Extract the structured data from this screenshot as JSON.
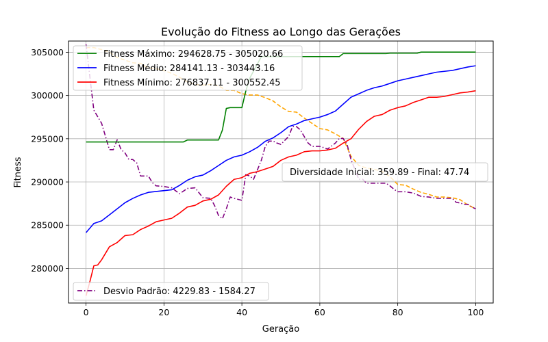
{
  "chart_data": {
    "type": "line",
    "title": "Evolução do Fitness ao Longo das Gerações",
    "xlabel": "Geração",
    "ylabel": "Fitness",
    "xlim": [
      -4.5,
      104.5
    ],
    "ylim": [
      276000,
      306300
    ],
    "xticks": [
      0,
      20,
      40,
      60,
      80,
      100
    ],
    "yticks": [
      280000,
      285000,
      290000,
      295000,
      300000,
      305000
    ],
    "grid": true,
    "legend_primary": "top-left",
    "legend_secondary": "bottom-left",
    "secondary_axis": {
      "hidden": true,
      "ylim": [
        -230,
        3750
      ],
      "note": "Diversidade (orange dashed) is plotted on a hidden secondary axis"
    },
    "annotation": "Diversidade Inicial: 359.89 - Final: 47.74",
    "series": [
      {
        "name": "Fitness Máximo: 294628.75 - 305020.66",
        "color": "#008000",
        "style": "solid",
        "axis": "primary",
        "points": [
          [
            0,
            294628.75
          ],
          [
            25,
            294628.75
          ],
          [
            26,
            294850
          ],
          [
            34,
            294850
          ],
          [
            35,
            296000
          ],
          [
            36,
            298500
          ],
          [
            37,
            298600
          ],
          [
            40,
            298600
          ],
          [
            41,
            300500
          ],
          [
            42,
            302000
          ],
          [
            45,
            304500
          ],
          [
            65,
            304500
          ],
          [
            66,
            304850
          ],
          [
            77,
            304850
          ],
          [
            78,
            304900
          ],
          [
            85,
            304900
          ],
          [
            86,
            305020.66
          ],
          [
            100,
            305020.66
          ]
        ]
      },
      {
        "name": "Fitness Médio: 284141.13 - 303443.16",
        "color": "#0000ff",
        "style": "solid",
        "axis": "primary",
        "points": [
          [
            0,
            284141.13
          ],
          [
            2,
            285200
          ],
          [
            4,
            285500
          ],
          [
            6,
            286200
          ],
          [
            8,
            286900
          ],
          [
            10,
            287600
          ],
          [
            12,
            288100
          ],
          [
            14,
            288500
          ],
          [
            16,
            288800
          ],
          [
            18,
            288900
          ],
          [
            20,
            289000
          ],
          [
            22,
            289100
          ],
          [
            24,
            289600
          ],
          [
            26,
            290200
          ],
          [
            28,
            290600
          ],
          [
            30,
            290800
          ],
          [
            32,
            291300
          ],
          [
            34,
            291900
          ],
          [
            36,
            292500
          ],
          [
            38,
            292900
          ],
          [
            40,
            293100
          ],
          [
            42,
            293500
          ],
          [
            44,
            294000
          ],
          [
            46,
            294700
          ],
          [
            48,
            295100
          ],
          [
            50,
            295700
          ],
          [
            52,
            296400
          ],
          [
            54,
            296700
          ],
          [
            56,
            297100
          ],
          [
            58,
            297300
          ],
          [
            60,
            297500
          ],
          [
            62,
            297800
          ],
          [
            64,
            298200
          ],
          [
            66,
            299000
          ],
          [
            68,
            299800
          ],
          [
            70,
            300200
          ],
          [
            72,
            300600
          ],
          [
            74,
            300900
          ],
          [
            76,
            301100
          ],
          [
            78,
            301400
          ],
          [
            80,
            301700
          ],
          [
            82,
            301900
          ],
          [
            84,
            302100
          ],
          [
            86,
            302300
          ],
          [
            88,
            302500
          ],
          [
            90,
            302700
          ],
          [
            92,
            302800
          ],
          [
            94,
            302900
          ],
          [
            96,
            303100
          ],
          [
            98,
            303300
          ],
          [
            100,
            303443.16
          ]
        ]
      },
      {
        "name": "Fitness Mínimo: 276837.11 - 300552.45",
        "color": "#ff0000",
        "style": "solid",
        "axis": "primary",
        "points": [
          [
            0,
            276837.11
          ],
          [
            1,
            278500
          ],
          [
            2,
            280300
          ],
          [
            3,
            280400
          ],
          [
            4,
            281000
          ],
          [
            6,
            282500
          ],
          [
            8,
            283000
          ],
          [
            10,
            283800
          ],
          [
            12,
            283900
          ],
          [
            14,
            284500
          ],
          [
            16,
            284900
          ],
          [
            18,
            285400
          ],
          [
            20,
            285600
          ],
          [
            22,
            285800
          ],
          [
            24,
            286400
          ],
          [
            26,
            287100
          ],
          [
            28,
            287300
          ],
          [
            30,
            287800
          ],
          [
            32,
            288000
          ],
          [
            34,
            288500
          ],
          [
            36,
            289500
          ],
          [
            38,
            290300
          ],
          [
            40,
            290500
          ],
          [
            42,
            291000
          ],
          [
            44,
            291200
          ],
          [
            46,
            291500
          ],
          [
            48,
            291800
          ],
          [
            50,
            292500
          ],
          [
            52,
            292900
          ],
          [
            54,
            293100
          ],
          [
            56,
            293500
          ],
          [
            58,
            293600
          ],
          [
            60,
            293600
          ],
          [
            62,
            293700
          ],
          [
            64,
            293900
          ],
          [
            66,
            294500
          ],
          [
            68,
            295000
          ],
          [
            70,
            296100
          ],
          [
            72,
            297000
          ],
          [
            74,
            297600
          ],
          [
            76,
            297800
          ],
          [
            78,
            298300
          ],
          [
            80,
            298600
          ],
          [
            82,
            298800
          ],
          [
            84,
            299200
          ],
          [
            86,
            299500
          ],
          [
            88,
            299800
          ],
          [
            90,
            299800
          ],
          [
            92,
            299900
          ],
          [
            94,
            300100
          ],
          [
            96,
            300300
          ],
          [
            98,
            300400
          ],
          [
            100,
            300552.45
          ]
        ]
      },
      {
        "name": "Desvio Padrão: 4229.83 - 1584.27",
        "color": "#800080",
        "style": "dashdot",
        "axis": "secondary",
        "points": [
          [
            0,
            3700
          ],
          [
            1,
            3200
          ],
          [
            2,
            2700
          ],
          [
            3,
            2600
          ],
          [
            4,
            2500
          ],
          [
            5,
            2300
          ],
          [
            6,
            2100
          ],
          [
            7,
            2100
          ],
          [
            8,
            2250
          ],
          [
            9,
            2100
          ],
          [
            10,
            2050
          ],
          [
            11,
            1950
          ],
          [
            12,
            1950
          ],
          [
            13,
            1900
          ],
          [
            14,
            1700
          ],
          [
            15,
            1700
          ],
          [
            16,
            1700
          ],
          [
            17,
            1600
          ],
          [
            18,
            1550
          ],
          [
            20,
            1540
          ],
          [
            22,
            1520
          ],
          [
            24,
            1430
          ],
          [
            26,
            1510
          ],
          [
            28,
            1520
          ],
          [
            30,
            1370
          ],
          [
            32,
            1360
          ],
          [
            33,
            1250
          ],
          [
            34,
            1100
          ],
          [
            35,
            1050
          ],
          [
            36,
            1200
          ],
          [
            37,
            1380
          ],
          [
            38,
            1360
          ],
          [
            40,
            1330
          ],
          [
            41,
            1720
          ],
          [
            42,
            1700
          ],
          [
            43,
            1650
          ],
          [
            45,
            1940
          ],
          [
            46,
            2150
          ],
          [
            47,
            2230
          ],
          [
            48,
            2230
          ],
          [
            49,
            2200
          ],
          [
            50,
            2180
          ],
          [
            52,
            2300
          ],
          [
            53,
            2450
          ],
          [
            54,
            2450
          ],
          [
            55,
            2400
          ],
          [
            56,
            2300
          ],
          [
            57,
            2200
          ],
          [
            58,
            2150
          ],
          [
            60,
            2150
          ],
          [
            62,
            2110
          ],
          [
            64,
            2200
          ],
          [
            65,
            2270
          ],
          [
            66,
            2270
          ],
          [
            67,
            2180
          ],
          [
            68,
            1950
          ],
          [
            69,
            1800
          ],
          [
            70,
            1650
          ],
          [
            71,
            1650
          ],
          [
            72,
            1590
          ],
          [
            74,
            1590
          ],
          [
            76,
            1590
          ],
          [
            77,
            1590
          ],
          [
            78,
            1550
          ],
          [
            79,
            1500
          ],
          [
            80,
            1460
          ],
          [
            81,
            1460
          ],
          [
            82,
            1460
          ],
          [
            84,
            1440
          ],
          [
            86,
            1390
          ],
          [
            88,
            1380
          ],
          [
            90,
            1360
          ],
          [
            92,
            1360
          ],
          [
            94,
            1360
          ],
          [
            95,
            1300
          ],
          [
            96,
            1290
          ],
          [
            97,
            1270
          ],
          [
            98,
            1270
          ],
          [
            99,
            1230
          ],
          [
            100,
            1200
          ]
        ]
      },
      {
        "name": "Diversidade",
        "color": "#ffa500",
        "style": "dashed",
        "axis": "secondary",
        "points": [
          [
            0,
            3650
          ],
          [
            2,
            3650
          ],
          [
            4,
            3620
          ],
          [
            6,
            3580
          ],
          [
            8,
            3500
          ],
          [
            10,
            3460
          ],
          [
            12,
            3420
          ],
          [
            14,
            3410
          ],
          [
            16,
            3340
          ],
          [
            18,
            3330
          ],
          [
            20,
            3300
          ],
          [
            22,
            3260
          ],
          [
            24,
            3200
          ],
          [
            26,
            3130
          ],
          [
            28,
            3090
          ],
          [
            30,
            3080
          ],
          [
            32,
            3090
          ],
          [
            34,
            3070
          ],
          [
            36,
            3000
          ],
          [
            38,
            3000
          ],
          [
            40,
            2950
          ],
          [
            42,
            2930
          ],
          [
            44,
            2930
          ],
          [
            46,
            2890
          ],
          [
            48,
            2840
          ],
          [
            50,
            2750
          ],
          [
            52,
            2680
          ],
          [
            54,
            2670
          ],
          [
            56,
            2580
          ],
          [
            58,
            2500
          ],
          [
            60,
            2420
          ],
          [
            62,
            2400
          ],
          [
            64,
            2340
          ],
          [
            66,
            2270
          ],
          [
            68,
            2000
          ],
          [
            70,
            1860
          ],
          [
            72,
            1820
          ],
          [
            74,
            1800
          ],
          [
            76,
            1770
          ],
          [
            78,
            1690
          ],
          [
            80,
            1570
          ],
          [
            82,
            1560
          ],
          [
            84,
            1500
          ],
          [
            86,
            1450
          ],
          [
            88,
            1420
          ],
          [
            90,
            1380
          ],
          [
            92,
            1380
          ],
          [
            94,
            1370
          ],
          [
            96,
            1340
          ],
          [
            98,
            1260
          ],
          [
            100,
            1200
          ]
        ]
      }
    ]
  }
}
